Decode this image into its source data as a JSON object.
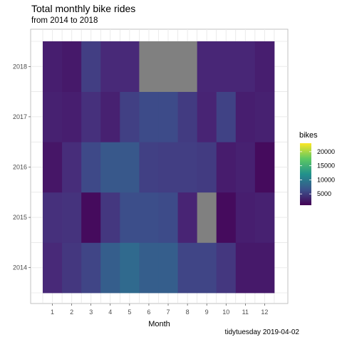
{
  "chart_data": {
    "type": "heatmap",
    "title": "Total monthly bike rides",
    "subtitle": "from 2014 to 2018",
    "caption": "tidytuesday 2019-04-02",
    "xlabel": "Month",
    "ylabel": "",
    "x_categories": [
      "1",
      "2",
      "3",
      "4",
      "5",
      "6",
      "7",
      "8",
      "9",
      "10",
      "11",
      "12"
    ],
    "y_categories": [
      "2014",
      "2015",
      "2016",
      "2017",
      "2018"
    ],
    "legend_title": "bikes",
    "legend_ticks": [
      5000,
      10000,
      15000,
      20000
    ],
    "scale_range": [
      1000,
      23000
    ],
    "colorscale": "viridis",
    "na_color": "#808080",
    "grid": true,
    "legend_position": "right",
    "rows": [
      {
        "year": "2014",
        "values": [
          3500,
          4500,
          5500,
          7500,
          8500,
          7500,
          7500,
          5500,
          5500,
          4500,
          2500,
          2500
        ]
      },
      {
        "year": "2015",
        "values": [
          4000,
          4200,
          1600,
          4500,
          6200,
          6200,
          6000,
          3200,
          null,
          1600,
          2800,
          3000
        ]
      },
      {
        "year": "2016",
        "values": [
          2300,
          3800,
          5800,
          7000,
          7000,
          5200,
          5000,
          5000,
          4800,
          2700,
          3000,
          1600
        ]
      },
      {
        "year": "2017",
        "values": [
          3000,
          2800,
          4000,
          3000,
          5200,
          6000,
          6000,
          4800,
          3200,
          5300,
          2800,
          3000
        ]
      },
      {
        "year": "2018",
        "values": [
          2800,
          2500,
          5000,
          3500,
          3500,
          null,
          null,
          null,
          3300,
          3300,
          3300,
          2800
        ]
      }
    ]
  }
}
